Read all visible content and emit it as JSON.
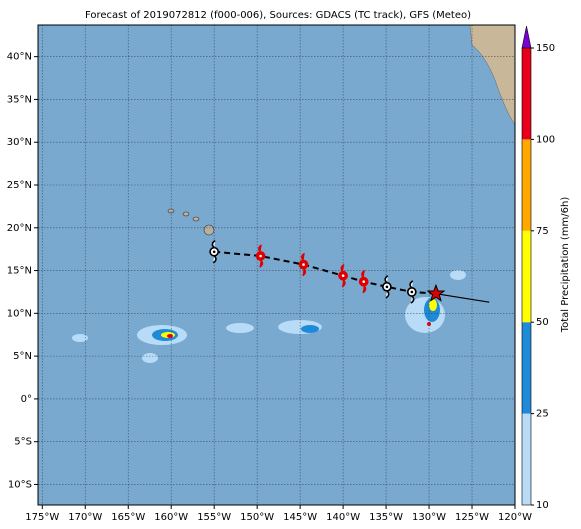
{
  "title": "Forecast of 2019072812 (f000-006), Sources: GDACS (TC track), GFS (Meteo)",
  "map": {
    "xlim": [
      -175.5,
      -120
    ],
    "ylim": [
      -12.4,
      43.7
    ],
    "xticks": [
      {
        "value": -175,
        "label": "175°W"
      },
      {
        "value": -170,
        "label": "170°W"
      },
      {
        "value": -165,
        "label": "165°W"
      },
      {
        "value": -160,
        "label": "160°W"
      },
      {
        "value": -155,
        "label": "155°W"
      },
      {
        "value": -150,
        "label": "150°W"
      },
      {
        "value": -145,
        "label": "145°W"
      },
      {
        "value": -140,
        "label": "140°W"
      },
      {
        "value": -135,
        "label": "135°W"
      },
      {
        "value": -130,
        "label": "130°W"
      },
      {
        "value": -125,
        "label": "125°W"
      },
      {
        "value": -120,
        "label": "120°W"
      }
    ],
    "yticks": [
      {
        "value": 40,
        "label": "40°N"
      },
      {
        "value": 35,
        "label": "35°N"
      },
      {
        "value": 30,
        "label": "30°N"
      },
      {
        "value": 25,
        "label": "25°N"
      },
      {
        "value": 20,
        "label": "20°N"
      },
      {
        "value": 15,
        "label": "15°N"
      },
      {
        "value": 10,
        "label": "10°N"
      },
      {
        "value": 5,
        "label": "5°N"
      },
      {
        "value": 0,
        "label": "0°"
      },
      {
        "value": -5,
        "label": "5°S"
      },
      {
        "value": -10,
        "label": "10°S"
      }
    ]
  },
  "track": {
    "points": [
      {
        "lon": -155,
        "lat": 17.2,
        "color": "#ffffff"
      },
      {
        "lon": -149.6,
        "lat": 16.7,
        "color": "#e00000"
      },
      {
        "lon": -144.6,
        "lat": 15.7,
        "color": "#e00000"
      },
      {
        "lon": -140,
        "lat": 14.4,
        "color": "#e00000"
      },
      {
        "lon": -137.6,
        "lat": 13.7,
        "color": "#e00000"
      },
      {
        "lon": -134.9,
        "lat": 13.1,
        "color": "#ffffff"
      },
      {
        "lon": -132,
        "lat": 12.5,
        "color": "#ffffff"
      }
    ],
    "current": {
      "lon": -129.2,
      "lat": 12.3,
      "color": "#e00000"
    },
    "extension": {
      "lon": [
        -129.2,
        -123
      ],
      "lat": [
        12.3,
        11.3
      ]
    }
  },
  "colorbar": {
    "label": "Total Precipitation (mm/6h)",
    "levels": [
      10,
      25,
      50,
      75,
      100,
      150
    ],
    "colors": [
      "#b8dcf8",
      "#1f8bd8",
      "#ffff00",
      "#ffa800",
      "#e8001a"
    ],
    "extend_color": "#7b00d4"
  }
}
